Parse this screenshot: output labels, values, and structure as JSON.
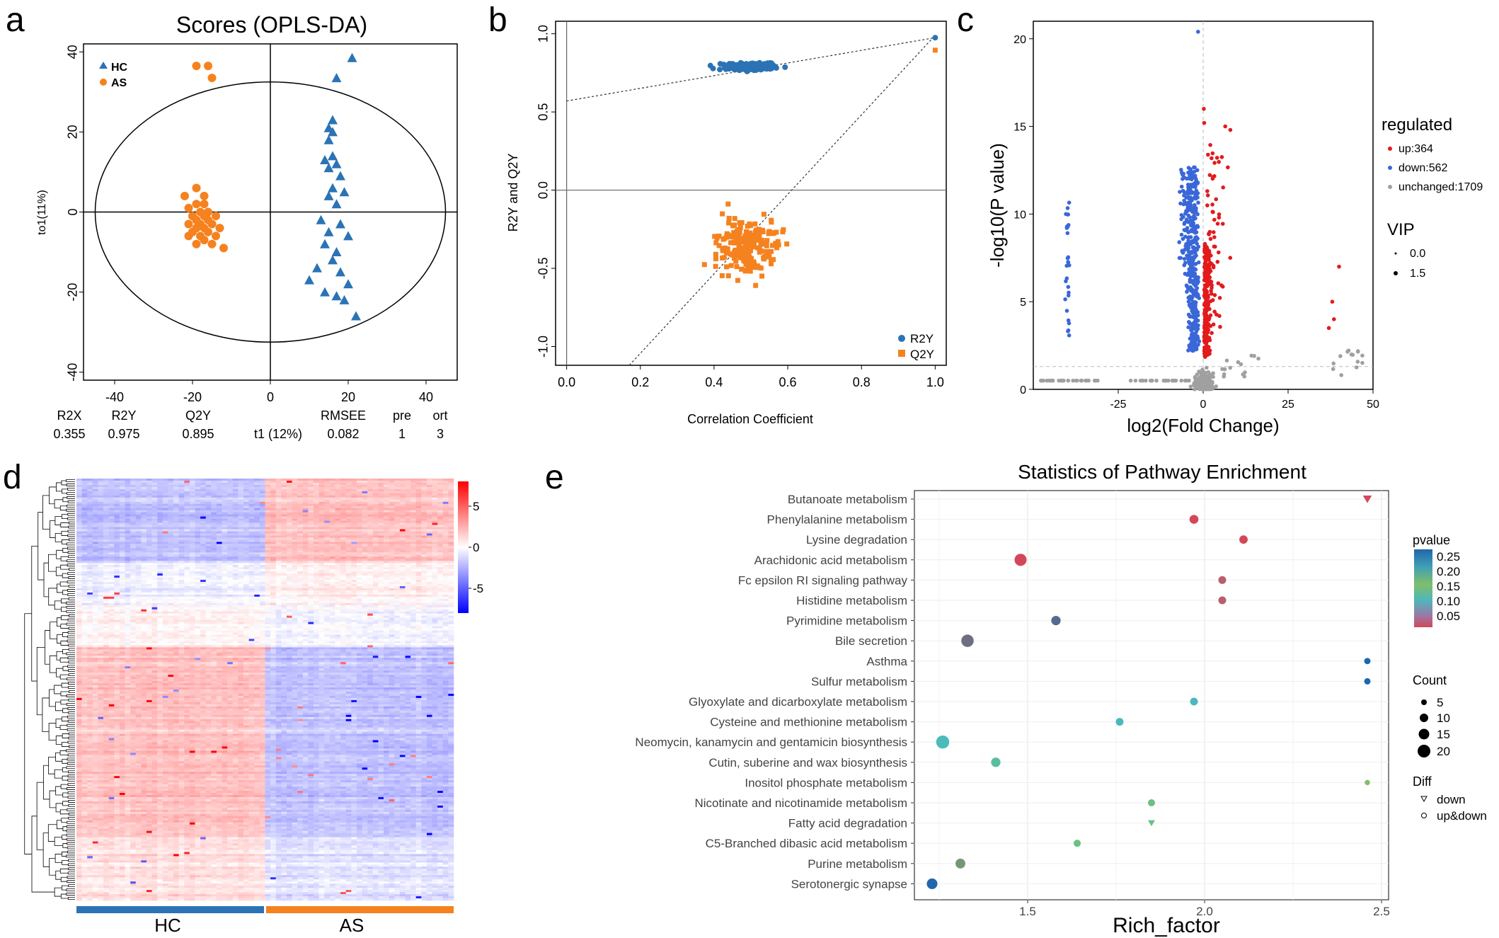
{
  "panel_letters": [
    "a",
    "b",
    "c",
    "d",
    "e"
  ],
  "colors": {
    "hc_blue": "#2b73b4",
    "as_orange": "#f5821f",
    "volcano_up": "#e31a1c",
    "volcano_down": "#3a67d8",
    "volcano_unchanged": "#a0a0a0",
    "heatmap_high": "#ff0000",
    "heatmap_mid": "#ffffff",
    "heatmap_low": "#0000ff"
  },
  "chart_data": [
    {
      "panel": "a",
      "type": "scatter",
      "title": "Scores (OPLS-DA)",
      "xlabel": "t1 (12%)",
      "ylabel": "to1(11%)",
      "xlim": [
        -48,
        48
      ],
      "ylim": [
        -42,
        42
      ],
      "xticks": [
        -40,
        -20,
        0,
        20,
        40
      ],
      "yticks": [
        -40,
        -20,
        0,
        20,
        40
      ],
      "grid": false,
      "legend_position": "top-left",
      "ellipse": {
        "rx": 45,
        "ry": 32.5
      },
      "stats": {
        "headers": [
          "R2X",
          "R2Y",
          "Q2Y",
          "RMSEE",
          "pre",
          "ort"
        ],
        "values": [
          "0.355",
          "0.975",
          "0.895",
          "0.082",
          "1",
          "3"
        ]
      },
      "series": [
        {
          "name": "HC",
          "marker": "triangle",
          "color": "#2b73b4",
          "points": [
            [
              21,
              38.5
            ],
            [
              17,
              33.5
            ],
            [
              16,
              23
            ],
            [
              15,
              21
            ],
            [
              16,
              20
            ],
            [
              15,
              18
            ],
            [
              16,
              14
            ],
            [
              14,
              13
            ],
            [
              17,
              12
            ],
            [
              15,
              11
            ],
            [
              18,
              9
            ],
            [
              16,
              6
            ],
            [
              19,
              5
            ],
            [
              15,
              4
            ],
            [
              17,
              2
            ],
            [
              13,
              -2
            ],
            [
              18,
              -3
            ],
            [
              15,
              -5
            ],
            [
              20,
              -6
            ],
            [
              14,
              -8
            ],
            [
              17,
              -10
            ],
            [
              16,
              -12
            ],
            [
              12,
              -14
            ],
            [
              18,
              -15
            ],
            [
              10,
              -17
            ],
            [
              20,
              -18
            ],
            [
              14,
              -20
            ],
            [
              17,
              -21
            ],
            [
              19,
              -22
            ],
            [
              22,
              -26
            ]
          ]
        },
        {
          "name": "AS",
          "marker": "circle",
          "color": "#f5821f",
          "points": [
            [
              -19,
              36.5
            ],
            [
              -16,
              36.5
            ],
            [
              -15,
              33.5
            ],
            [
              -19,
              6
            ],
            [
              -17,
              4
            ],
            [
              -22,
              4
            ],
            [
              -19,
              2
            ],
            [
              -17,
              2
            ],
            [
              -21,
              1
            ],
            [
              -18,
              0
            ],
            [
              -16,
              0
            ],
            [
              -20,
              -1
            ],
            [
              -17,
              -1
            ],
            [
              -14,
              -1
            ],
            [
              -19,
              -2
            ],
            [
              -16,
              -2
            ],
            [
              -21,
              -3
            ],
            [
              -18,
              -3
            ],
            [
              -15,
              -3
            ],
            [
              -19,
              -4
            ],
            [
              -17,
              -4
            ],
            [
              -13,
              -4
            ],
            [
              -20,
              -5
            ],
            [
              -16,
              -5
            ],
            [
              -18,
              -6
            ],
            [
              -14,
              -6
            ],
            [
              -21,
              -6
            ],
            [
              -17,
              -7
            ],
            [
              -19,
              -8
            ],
            [
              -15,
              -8
            ],
            [
              -12,
              -9
            ]
          ]
        }
      ]
    },
    {
      "panel": "b",
      "type": "scatter",
      "xlabel": "Correlation Coefficient",
      "ylabel": "R2Y and Q2Y",
      "xlim": [
        -0.03,
        1.03
      ],
      "ylim": [
        -1.12,
        1.08
      ],
      "xticks": [
        "0.0",
        "0.2",
        "0.4",
        "0.6",
        "0.8",
        "1.0"
      ],
      "yticks": [
        "-1.0",
        "-0.5",
        "0.0",
        "0.5",
        "1.0"
      ],
      "grid": false,
      "legend_position": "bottom-right",
      "series": [
        {
          "name": "R2Y",
          "marker": "circle",
          "color": "#2b73b4",
          "cloud": {
            "x_center": 0.5,
            "x_spread": 0.13,
            "y_center": 0.79,
            "y_spread": 0.045,
            "n": 200
          },
          "original": [
            1.0,
            0.975
          ]
        },
        {
          "name": "Q2Y",
          "marker": "square",
          "color": "#f5821f",
          "cloud": {
            "x_center": 0.49,
            "x_spread": 0.16,
            "y_center": -0.36,
            "y_spread": 0.3,
            "n": 200
          },
          "original": [
            1.0,
            0.895
          ]
        }
      ],
      "regression_lines": [
        {
          "series": "R2Y",
          "x1": 0.0,
          "y1": 0.57,
          "x2": 1.0,
          "y2": 0.975
        },
        {
          "series": "Q2Y",
          "x1": 0.17,
          "y1": -1.12,
          "x2": 1.0,
          "y2": 0.99
        }
      ]
    },
    {
      "panel": "c",
      "type": "scatter",
      "xlabel": "log2(Fold Change)",
      "ylabel": "-log10(P value)",
      "xlim": [
        -50,
        50
      ],
      "ylim": [
        0,
        21
      ],
      "xticks": [
        "-25",
        "0",
        "25",
        "50"
      ],
      "yticks": [
        "0",
        "5",
        "10",
        "15",
        "20"
      ],
      "grid": false,
      "legend_position": "right",
      "thresholds": {
        "x": 0,
        "y": 1.3
      },
      "legend": {
        "regulated_title": "regulated",
        "groups": [
          "up:364",
          "down:562",
          "unchanged:1709"
        ],
        "vip_title": "VIP",
        "vip_levels": [
          "0.0",
          "1.5"
        ]
      },
      "series": [
        {
          "name": "up:364",
          "color": "#e31a1c",
          "count": 364
        },
        {
          "name": "down:562",
          "color": "#3a67d8",
          "count": 562
        },
        {
          "name": "unchanged:1709",
          "color": "#a0a0a0",
          "count": 1709
        }
      ]
    },
    {
      "panel": "d",
      "type": "heatmap",
      "groups": [
        "HC",
        "AS"
      ],
      "group_colors": [
        "#2b73b4",
        "#f5821f"
      ],
      "colorbar": {
        "ticks": [
          "5",
          "0",
          "-5"
        ],
        "range": [
          -8,
          8
        ]
      },
      "rows": 200,
      "columns_per_group": 35
    },
    {
      "panel": "e",
      "type": "scatter",
      "title": "Statistics of Pathway Enrichment",
      "xlabel": "Rich_factor",
      "ylabel": "",
      "xlim": [
        1.18,
        2.52
      ],
      "xticks": [
        "1.5",
        "2.0",
        "2.5"
      ],
      "grid": true,
      "legend_position": "right",
      "legend": {
        "pvalue_title": "pvalue",
        "pvalue_ticks": [
          "0.25",
          "0.20",
          "0.15",
          "0.10",
          "0.05"
        ],
        "count_title": "Count",
        "count_levels": [
          "5",
          "10",
          "15",
          "20"
        ],
        "diff_title": "Diff",
        "diff_levels": [
          "down",
          "up&down"
        ]
      },
      "categories": [
        "Butanoate metabolism",
        "Phenylalanine metabolism",
        "Lysine degradation",
        "Arachidonic acid metabolism",
        "Fc epsilon RI signaling pathway",
        "Histidine metabolism",
        "Pyrimidine metabolism",
        "Bile secretion",
        "Asthma",
        "Sulfur metabolism",
        "Glyoxylate and dicarboxylate metabolism",
        "Cysteine and methionine metabolism",
        "Neomycin, kanamycin and gentamicin biosynthesis",
        "Cutin, suberine and wax biosynthesis",
        "Inositol phosphate metabolism",
        "Nicotinate and nicotinamide metabolism",
        "Fatty acid degradation",
        "C5-Branched dibasic acid metabolism",
        "Purine metabolism",
        "Serotonergic synapse"
      ],
      "points": [
        {
          "pathway": "Butanoate metabolism",
          "rich_factor": 2.46,
          "count": 6,
          "pvalue": 0.04,
          "diff": "down"
        },
        {
          "pathway": "Phenylalanine metabolism",
          "rich_factor": 1.97,
          "count": 6,
          "pvalue": 0.03,
          "diff": "up&down"
        },
        {
          "pathway": "Lysine degradation",
          "rich_factor": 2.11,
          "count": 5,
          "pvalue": 0.04,
          "diff": "up&down"
        },
        {
          "pathway": "Arachidonic acid metabolism",
          "rich_factor": 1.48,
          "count": 14,
          "pvalue": 0.04,
          "diff": "up&down"
        },
        {
          "pathway": "Fc epsilon RI signaling pathway",
          "rich_factor": 2.05,
          "count": 4,
          "pvalue": 0.06,
          "diff": "up&down"
        },
        {
          "pathway": "Histidine metabolism",
          "rich_factor": 2.05,
          "count": 4,
          "pvalue": 0.06,
          "diff": "up&down"
        },
        {
          "pathway": "Pyrimidine metabolism",
          "rich_factor": 1.58,
          "count": 7,
          "pvalue": 0.23,
          "diff": "up&down"
        },
        {
          "pathway": "Bile secretion",
          "rich_factor": 1.33,
          "count": 15,
          "pvalue": 0.22,
          "diff": "up&down"
        },
        {
          "pathway": "Asthma",
          "rich_factor": 2.46,
          "count": 2,
          "pvalue": 0.25,
          "diff": "up&down"
        },
        {
          "pathway": "Sulfur metabolism",
          "rich_factor": 2.46,
          "count": 2,
          "pvalue": 0.25,
          "diff": "up&down"
        },
        {
          "pathway": "Glyoxylate and dicarboxylate metabolism",
          "rich_factor": 1.97,
          "count": 4,
          "pvalue": 0.11,
          "diff": "up&down"
        },
        {
          "pathway": "Cysteine and methionine metabolism",
          "rich_factor": 1.76,
          "count": 4,
          "pvalue": 0.11,
          "diff": "up&down"
        },
        {
          "pathway": "Neomycin, kanamycin and gentamicin biosynthesis",
          "rich_factor": 1.26,
          "count": 17,
          "pvalue": 0.13,
          "diff": "up&down"
        },
        {
          "pathway": "Cutin, suberine and wax biosynthesis",
          "rich_factor": 1.41,
          "count": 7,
          "pvalue": 0.16,
          "diff": "up&down"
        },
        {
          "pathway": "Inositol phosphate metabolism",
          "rich_factor": 2.46,
          "count": 1,
          "pvalue": 0.18,
          "diff": "up&down"
        },
        {
          "pathway": "Nicotinate and nicotinamide metabolism",
          "rich_factor": 1.85,
          "count": 3,
          "pvalue": 0.17,
          "diff": "up&down"
        },
        {
          "pathway": "Fatty acid degradation",
          "rich_factor": 1.85,
          "count": 3,
          "pvalue": 0.17,
          "diff": "down"
        },
        {
          "pathway": "C5-Branched dibasic acid metabolism",
          "rich_factor": 1.64,
          "count": 3,
          "pvalue": 0.17,
          "diff": "up&down"
        },
        {
          "pathway": "Purine metabolism",
          "rich_factor": 1.31,
          "count": 8,
          "pvalue": 0.2,
          "diff": "up&down"
        },
        {
          "pathway": "Serotonergic synapse",
          "rich_factor": 1.23,
          "count": 10,
          "pvalue": 0.26,
          "diff": "up&down"
        }
      ]
    }
  ]
}
